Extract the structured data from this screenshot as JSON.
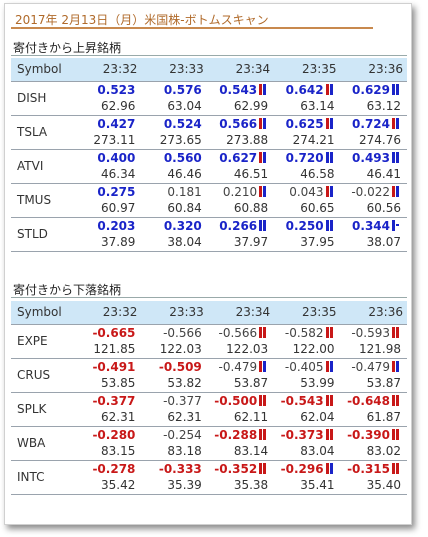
{
  "title": "2017年 2月13日（月）米国株-ボトムスキャン",
  "colors": {
    "up": "#1a24c8",
    "down": "#c81818",
    "header_bg": "#cfe7f7"
  },
  "sections": [
    {
      "title": "寄付きから上昇銘柄",
      "headers": [
        "Symbol",
        "23:32",
        "23:33",
        "23:34",
        "23:35",
        "23:36"
      ],
      "rows": [
        {
          "symbol": "DISH",
          "changes": [
            "0.523",
            "0.576",
            "0.543",
            "0.642",
            "0.629"
          ],
          "prices": [
            "62.96",
            "63.04",
            "62.99",
            "63.14",
            "63.12"
          ]
        },
        {
          "symbol": "TSLA",
          "changes": [
            "0.427",
            "0.524",
            "0.566",
            "0.625",
            "0.724"
          ],
          "prices": [
            "273.11",
            "273.65",
            "273.88",
            "274.21",
            "274.76"
          ]
        },
        {
          "symbol": "ATVI",
          "changes": [
            "0.400",
            "0.560",
            "0.627",
            "0.720",
            "0.493"
          ],
          "prices": [
            "46.34",
            "46.46",
            "46.51",
            "46.58",
            "46.41"
          ]
        },
        {
          "symbol": "TMUS",
          "changes": [
            "0.275",
            "0.181",
            "0.210",
            "0.043",
            "-0.022"
          ],
          "prices": [
            "60.97",
            "60.84",
            "60.88",
            "60.65",
            "60.56"
          ]
        },
        {
          "symbol": "STLD",
          "changes": [
            "0.203",
            "0.320",
            "0.266",
            "0.250",
            "0.344"
          ],
          "prices": [
            "37.89",
            "38.04",
            "37.97",
            "37.95",
            "38.07"
          ]
        }
      ]
    },
    {
      "title": "寄付きから下落銘柄",
      "headers": [
        "Symbol",
        "23:32",
        "23:33",
        "23:34",
        "23:35",
        "23:36"
      ],
      "rows": [
        {
          "symbol": "EXPE",
          "changes": [
            "-0.665",
            "-0.566",
            "-0.566",
            "-0.582",
            "-0.593"
          ],
          "prices": [
            "121.85",
            "122.03",
            "122.03",
            "122.00",
            "121.98"
          ]
        },
        {
          "symbol": "CRUS",
          "changes": [
            "-0.491",
            "-0.509",
            "-0.479",
            "-0.405",
            "-0.479"
          ],
          "prices": [
            "53.85",
            "53.82",
            "53.87",
            "53.99",
            "53.87"
          ]
        },
        {
          "symbol": "SPLK",
          "changes": [
            "-0.377",
            "-0.377",
            "-0.500",
            "-0.543",
            "-0.648"
          ],
          "prices": [
            "62.31",
            "62.31",
            "62.11",
            "62.04",
            "61.87"
          ]
        },
        {
          "symbol": "WBA",
          "changes": [
            "-0.280",
            "-0.254",
            "-0.288",
            "-0.373",
            "-0.390"
          ],
          "prices": [
            "83.15",
            "83.18",
            "83.14",
            "83.04",
            "83.02"
          ]
        },
        {
          "symbol": "INTC",
          "changes": [
            "-0.278",
            "-0.333",
            "-0.352",
            "-0.296",
            "-0.315"
          ],
          "prices": [
            "35.42",
            "35.39",
            "35.38",
            "35.41",
            "35.40"
          ]
        }
      ]
    }
  ]
}
